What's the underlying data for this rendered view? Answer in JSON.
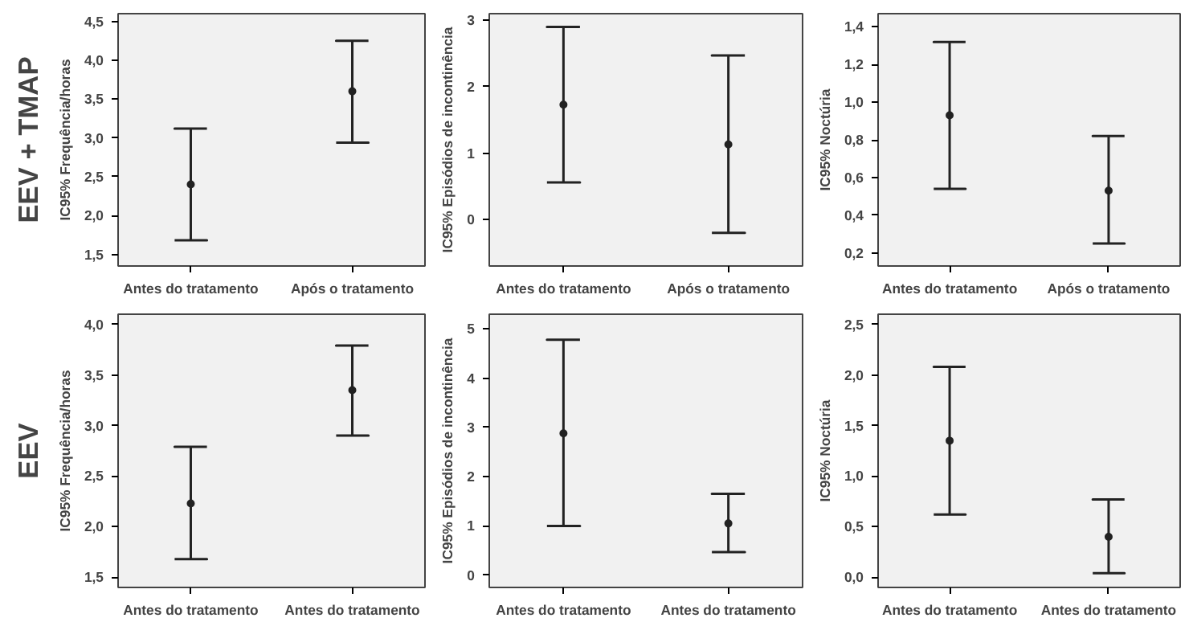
{
  "chart_data": [
    {
      "type": "scatter",
      "annotations": [
        "EEV + TMAP"
      ],
      "ylabel": "IC95% Frequência/horas",
      "categories": [
        "Antes do tratamento",
        "Após o tratamento"
      ],
      "values": [
        2.4,
        3.6
      ],
      "errors": [
        [
          1.68,
          3.12
        ],
        [
          2.94,
          4.25
        ]
      ],
      "color": "#222222",
      "marker": "circle",
      "grid": false,
      "ylim": [
        1.35,
        4.6
      ],
      "yticks": [
        {
          "value": 1.5,
          "label": "1,5"
        },
        {
          "value": 2.0,
          "label": "2,0"
        },
        {
          "value": 2.5,
          "label": "2,5"
        },
        {
          "value": 3.0,
          "label": "3,0"
        },
        {
          "value": 3.5,
          "label": "3,5"
        },
        {
          "value": 4.0,
          "label": "4,0"
        },
        {
          "value": 4.5,
          "label": "4,5"
        }
      ]
    },
    {
      "type": "scatter",
      "ylabel": "IC95% Episódios de incontinência",
      "categories": [
        "Antes do tratamento",
        "Após o tratamento"
      ],
      "values": [
        1.73,
        1.13
      ],
      "errors": [
        [
          0.56,
          2.9
        ],
        [
          -0.2,
          2.47
        ]
      ],
      "color": "#222222",
      "marker": "circle",
      "grid": false,
      "ylim": [
        -0.7,
        3.1
      ],
      "yticks": [
        0,
        1,
        2,
        3
      ]
    },
    {
      "type": "scatter",
      "ylabel": "IC95% Noctúria",
      "categories": [
        "Antes do tratamento",
        "Após o tratamento"
      ],
      "values": [
        0.93,
        0.53
      ],
      "errors": [
        [
          0.54,
          1.32
        ],
        [
          0.25,
          0.82
        ]
      ],
      "color": "#222222",
      "marker": "circle",
      "grid": false,
      "ylim": [
        0.13,
        1.47
      ],
      "yticks": [
        {
          "value": 0.2,
          "label": "0,2"
        },
        {
          "value": 0.4,
          "label": "0,4"
        },
        {
          "value": 0.6,
          "label": "0,6"
        },
        {
          "value": 0.8,
          "label": "0,8"
        },
        {
          "value": 1.0,
          "label": "1,0"
        },
        {
          "value": 1.2,
          "label": "1,2"
        },
        {
          "value": 1.4,
          "label": "1,4"
        }
      ]
    },
    {
      "type": "scatter",
      "annotations": [
        "EEV"
      ],
      "ylabel": "IC95% Frequência/horas",
      "categories": [
        "Antes do tratamento",
        "Antes do tratamento"
      ],
      "values": [
        2.23,
        3.35
      ],
      "errors": [
        [
          1.68,
          2.79
        ],
        [
          2.9,
          3.79
        ]
      ],
      "color": "#222222",
      "marker": "circle",
      "grid": false,
      "ylim": [
        1.4,
        4.1
      ],
      "yticks": [
        {
          "value": 1.5,
          "label": "1,5"
        },
        {
          "value": 2.0,
          "label": "2,0"
        },
        {
          "value": 2.5,
          "label": "2,5"
        },
        {
          "value": 3.0,
          "label": "3,0"
        },
        {
          "value": 3.5,
          "label": "3,5"
        },
        {
          "value": 4.0,
          "label": "4,0"
        }
      ]
    },
    {
      "type": "scatter",
      "ylabel": "IC95% Episódios de incontinência",
      "categories": [
        "Antes do tratamento",
        "Antes do tratamento"
      ],
      "values": [
        2.88,
        1.05
      ],
      "errors": [
        [
          1.0,
          4.78
        ],
        [
          0.47,
          1.65
        ]
      ],
      "color": "#222222",
      "marker": "circle",
      "grid": false,
      "ylim": [
        -0.25,
        5.3
      ],
      "yticks": [
        0,
        1,
        2,
        3,
        4,
        5
      ]
    },
    {
      "type": "scatter",
      "ylabel": "IC95% Noctúria",
      "categories": [
        "Antes do tratamento",
        "Antes do tratamento"
      ],
      "values": [
        1.35,
        0.4
      ],
      "errors": [
        [
          0.62,
          2.08
        ],
        [
          0.04,
          0.77
        ]
      ],
      "color": "#222222",
      "marker": "circle",
      "grid": false,
      "ylim": [
        -0.1,
        2.6
      ],
      "yticks": [
        {
          "value": 0.0,
          "label": "0,0"
        },
        {
          "value": 0.5,
          "label": "0,5"
        },
        {
          "value": 1.0,
          "label": "1,0"
        },
        {
          "value": 1.5,
          "label": "1,5"
        },
        {
          "value": 2.0,
          "label": "2,0"
        },
        {
          "value": 2.5,
          "label": "2,5"
        }
      ]
    }
  ]
}
